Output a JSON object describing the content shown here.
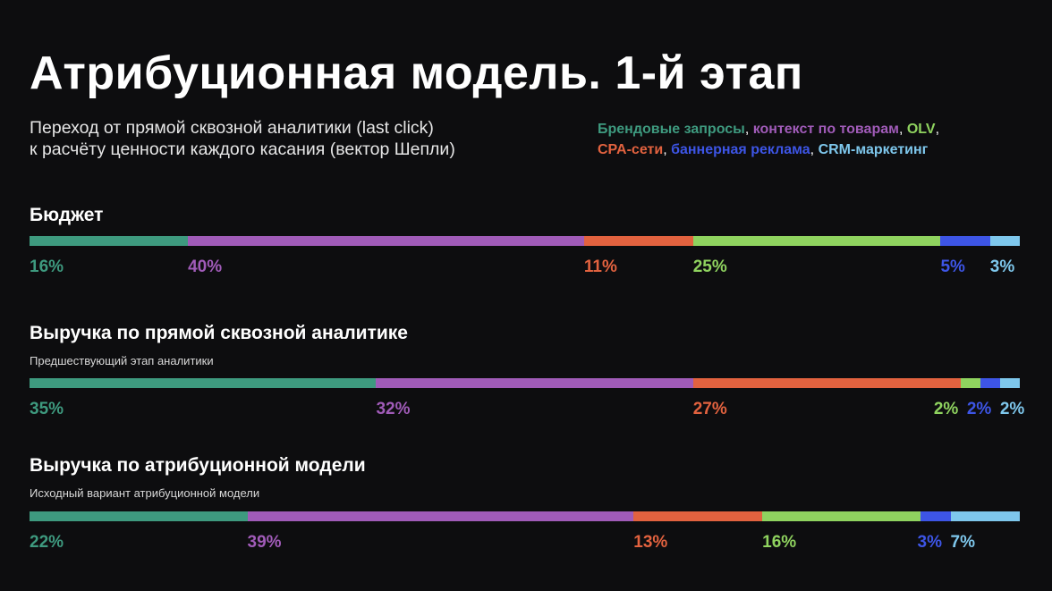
{
  "title": "Атрибуционная модель. 1-й этап",
  "subtitle": {
    "line1": "Переход от прямой сквозной аналитики (last click)",
    "line2": "к расчёту ценности каждого касания (вектор Шепли)"
  },
  "legend": [
    {
      "label": "Брендовые запросы",
      "color": "#3e9a7f"
    },
    {
      "label": "контекст по товарам",
      "color": "#a05bb8"
    },
    {
      "label": "OLV",
      "color": "#8fd35f"
    },
    {
      "label": "CPA-сети",
      "color": "#e2623f"
    },
    {
      "label": "баннерная реклама",
      "color": "#3d55e6"
    },
    {
      "label": "CRM-маркетинг",
      "color": "#7ec7ec"
    }
  ],
  "chart_data": {
    "type": "bar",
    "stacked": true,
    "orientation": "horizontal",
    "series_order": [
      "Брендовые запросы",
      "контекст по товарам",
      "CPA-сети",
      "OLV",
      "баннерная реклама",
      "CRM-маркетинг"
    ],
    "series_colors": [
      "#3e9a7f",
      "#a05bb8",
      "#e2623f",
      "#8fd35f",
      "#3d55e6",
      "#7ec7ec"
    ],
    "bars": [
      {
        "title": "Бюджет",
        "subtitle": "",
        "values": [
          16,
          40,
          11,
          25,
          5,
          3
        ],
        "labels": [
          "16%",
          "40%",
          "11%",
          "25%",
          "5%",
          "3%"
        ]
      },
      {
        "title": "Выручка по прямой сквозной аналитике",
        "subtitle": "Предшествующий этап аналитики",
        "values": [
          35,
          32,
          27,
          2,
          2,
          2
        ],
        "labels": [
          "35%",
          "32%",
          "27%",
          "2%",
          "2%",
          "2%"
        ]
      },
      {
        "title": "Выручка по атрибуционной модели",
        "subtitle": "Исходный вариант атрибуционной модели",
        "values": [
          22,
          39,
          13,
          16,
          3,
          7
        ],
        "labels": [
          "22%",
          "39%",
          "13%",
          "16%",
          "3%",
          "7%"
        ]
      }
    ]
  }
}
